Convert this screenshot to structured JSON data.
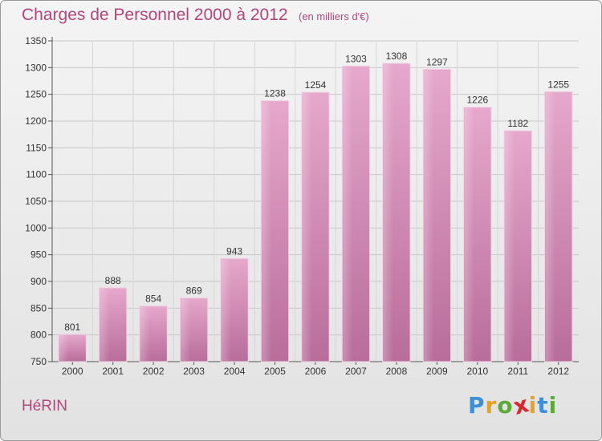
{
  "chart_data": {
    "type": "bar",
    "title": "Charges de Personnel 2000 à 2012",
    "subtitle": "(en milliers d'€)",
    "categories": [
      "2000",
      "2001",
      "2002",
      "2003",
      "2004",
      "2005",
      "2006",
      "2007",
      "2008",
      "2009",
      "2010",
      "2011",
      "2012"
    ],
    "values": [
      801,
      888,
      854,
      869,
      943,
      1238,
      1254,
      1303,
      1308,
      1297,
      1226,
      1182,
      1255
    ],
    "ylim": [
      750,
      1350
    ],
    "yticks": [
      750,
      800,
      850,
      900,
      950,
      1000,
      1050,
      1100,
      1150,
      1200,
      1250,
      1300,
      1350
    ],
    "grid": true,
    "bar_color": "#d98fb8"
  },
  "footer": {
    "commune": "HéRIN",
    "logo": "Proxiti",
    "logo_colors": [
      "#3d8fd6",
      "#e8a21c",
      "#5aaa3a",
      "#d9262f",
      "#e8a21c",
      "#3d8fd6",
      "#5aaa3a"
    ]
  }
}
